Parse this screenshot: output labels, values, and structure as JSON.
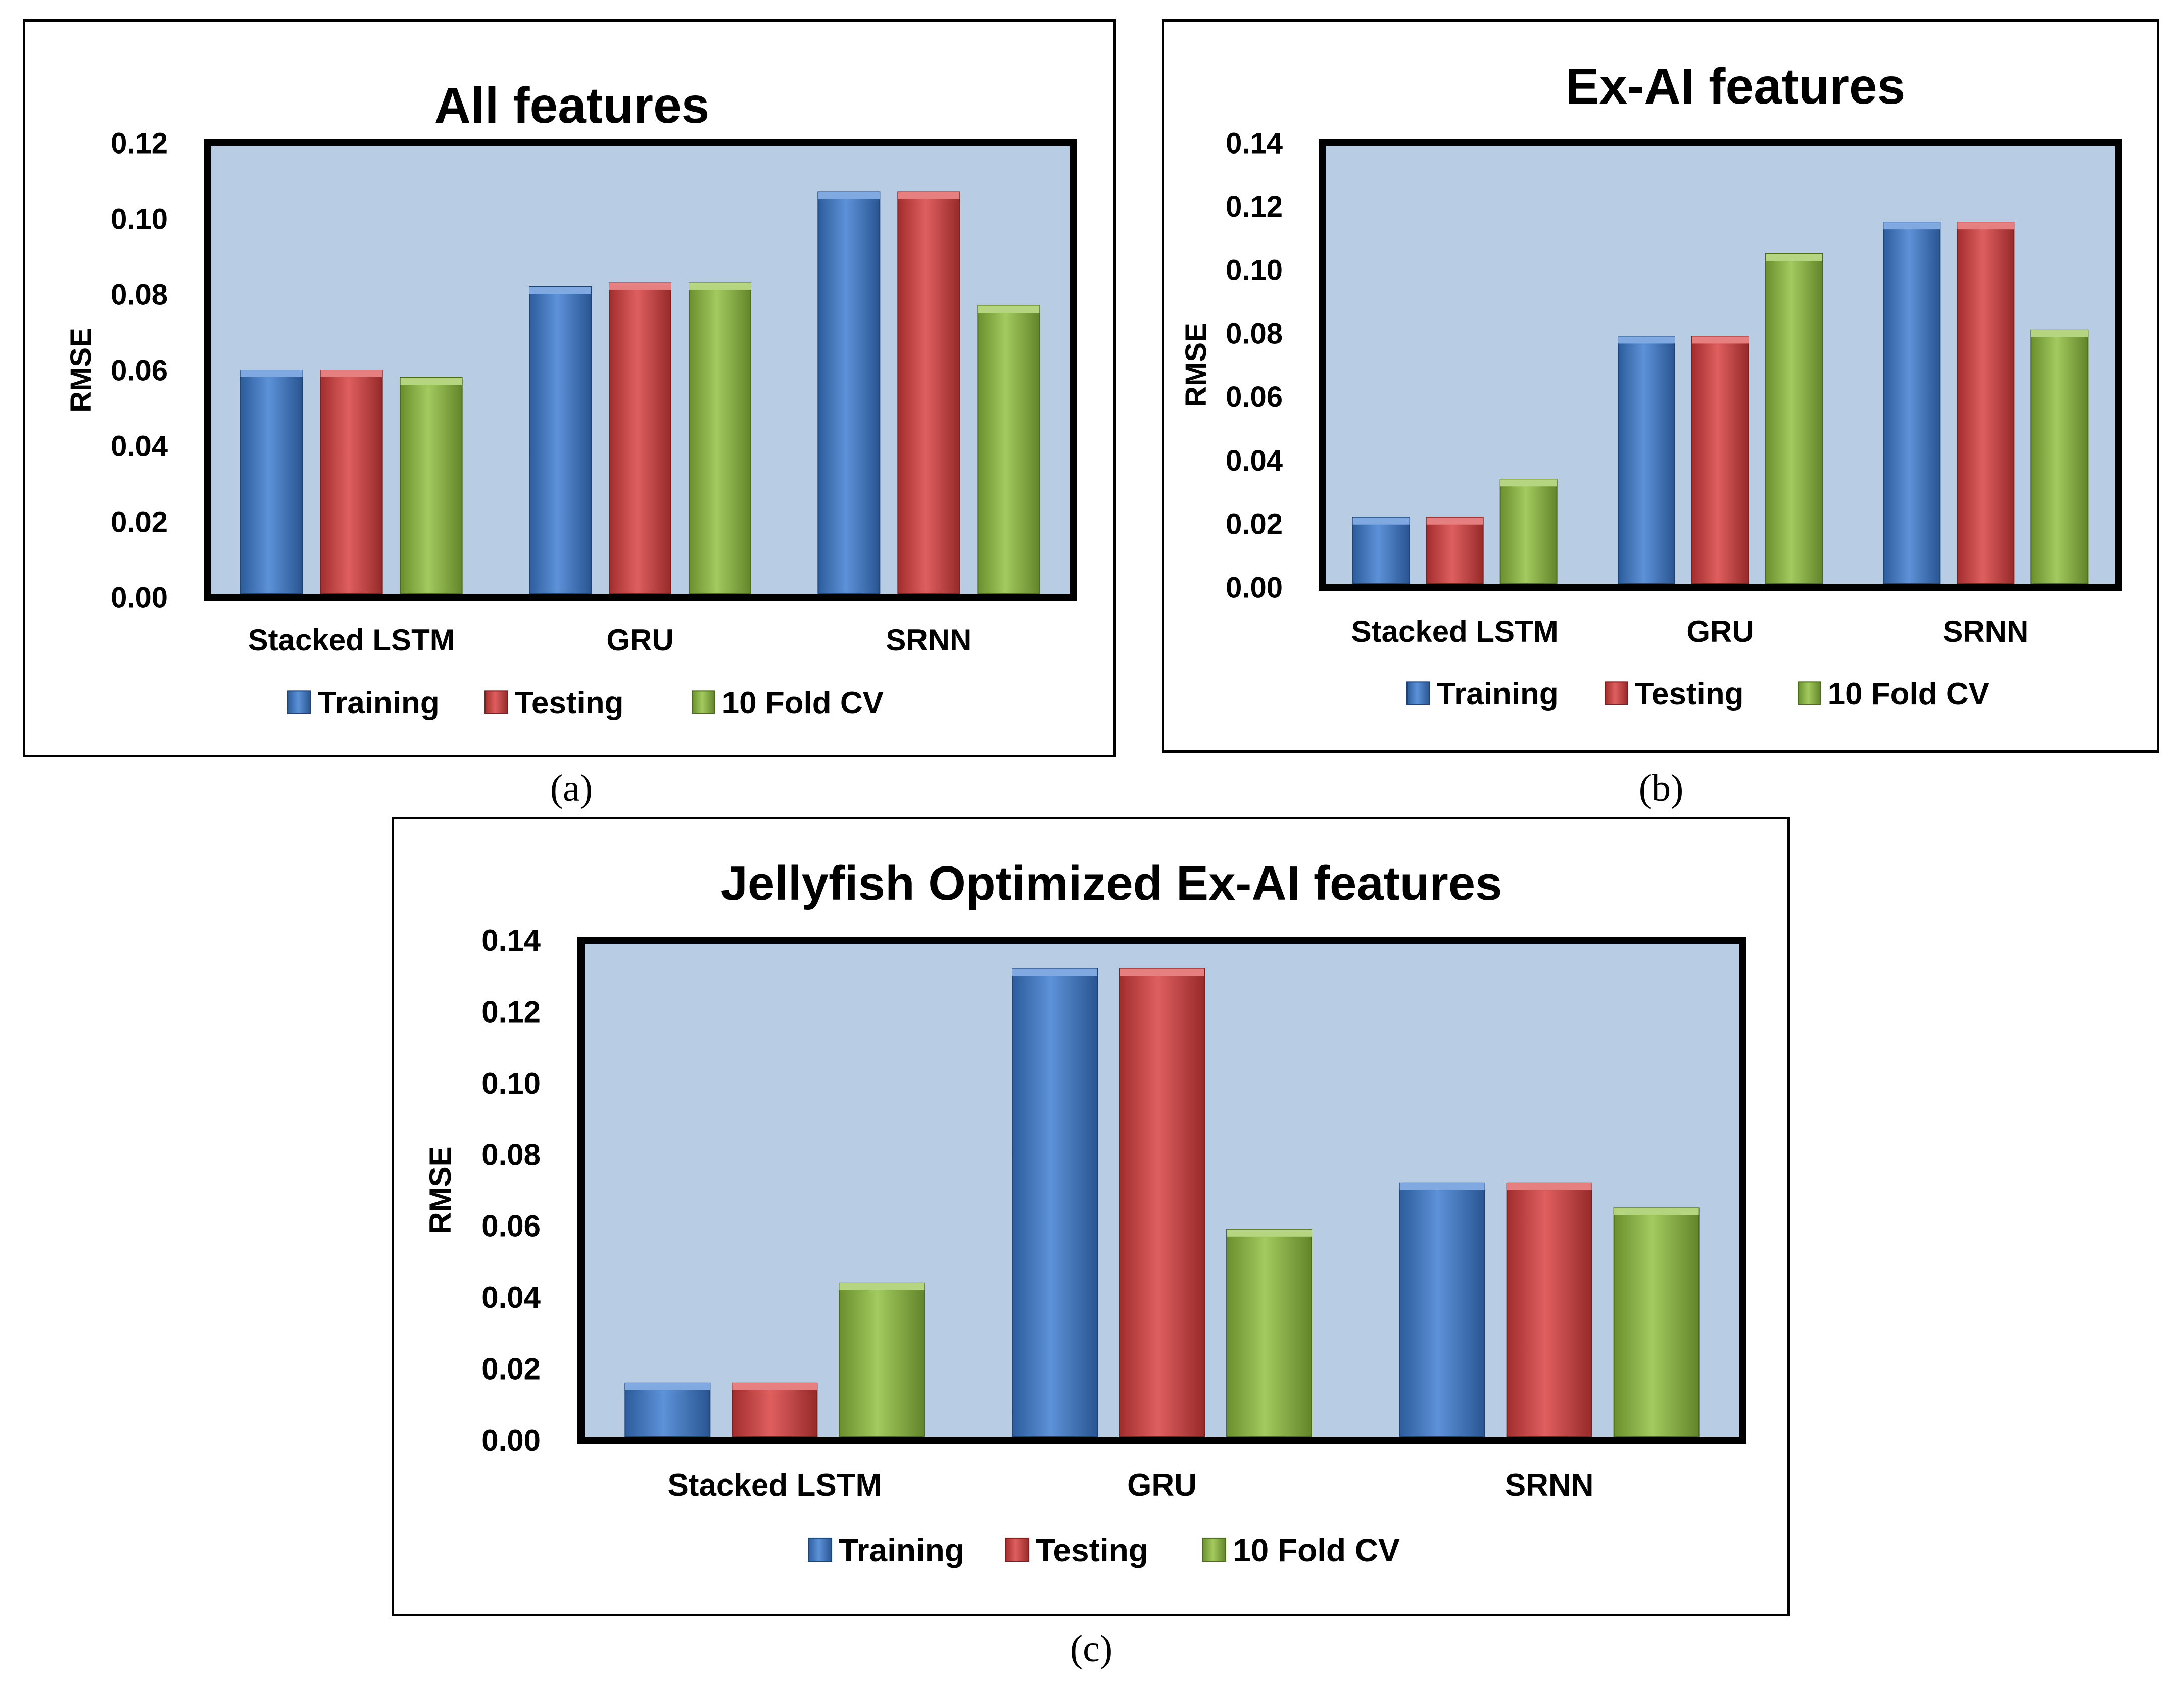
{
  "figure": {
    "colors": {
      "training": "#3a7ad0",
      "testing": "#d83c3c",
      "cv": "#8dbe3c",
      "plot_bg": "#b8cce4"
    },
    "captions": {
      "a": "(a)",
      "b": "(b)",
      "c": "(c)"
    }
  },
  "chart_data": [
    {
      "id": "a",
      "type": "bar",
      "title": "All features",
      "xlabel": "",
      "ylabel": "RMSE",
      "ylim": [
        0,
        0.12
      ],
      "ytick_step": 0.02,
      "ytick_labels": [
        "0.00",
        "0.02",
        "0.04",
        "0.06",
        "0.08",
        "0.10",
        "0.12"
      ],
      "categories": [
        "Stacked LSTM",
        "GRU",
        "SRNN"
      ],
      "series": [
        {
          "name": "Training",
          "values": [
            0.06,
            0.082,
            0.107
          ]
        },
        {
          "name": "Testing",
          "values": [
            0.06,
            0.083,
            0.107
          ]
        },
        {
          "name": "10 Fold CV",
          "values": [
            0.058,
            0.083,
            0.077
          ]
        }
      ],
      "legend": "bottom",
      "grid": false
    },
    {
      "id": "b",
      "type": "bar",
      "title": "Ex-AI features",
      "xlabel": "",
      "ylabel": "RMSE",
      "ylim": [
        0,
        0.14
      ],
      "ytick_step": 0.02,
      "ytick_labels": [
        "0.00",
        "0.02",
        "0.04",
        "0.06",
        "0.08",
        "0.10",
        "0.12",
        "0.14"
      ],
      "categories": [
        "Stacked LSTM",
        "GRU",
        "SRNN"
      ],
      "series": [
        {
          "name": "Training",
          "values": [
            0.022,
            0.079,
            0.115
          ]
        },
        {
          "name": "Testing",
          "values": [
            0.022,
            0.079,
            0.115
          ]
        },
        {
          "name": "10 Fold CV",
          "values": [
            0.034,
            0.105,
            0.081
          ]
        }
      ],
      "legend": "bottom",
      "grid": false
    },
    {
      "id": "c",
      "type": "bar",
      "title": "Jellyfish Optimized Ex-AI features",
      "xlabel": "",
      "ylabel": "RMSE",
      "ylim": [
        0,
        0.14
      ],
      "ytick_step": 0.02,
      "ytick_labels": [
        "0.00",
        "0.02",
        "0.04",
        "0.06",
        "0.08",
        "0.10",
        "0.12",
        "0.14"
      ],
      "categories": [
        "Stacked LSTM",
        "GRU",
        "SRNN"
      ],
      "series": [
        {
          "name": "Training",
          "values": [
            0.016,
            0.132,
            0.072
          ]
        },
        {
          "name": "Testing",
          "values": [
            0.016,
            0.132,
            0.072
          ]
        },
        {
          "name": "10 Fold CV",
          "values": [
            0.044,
            0.059,
            0.065
          ]
        }
      ],
      "legend": "bottom",
      "grid": false
    }
  ]
}
